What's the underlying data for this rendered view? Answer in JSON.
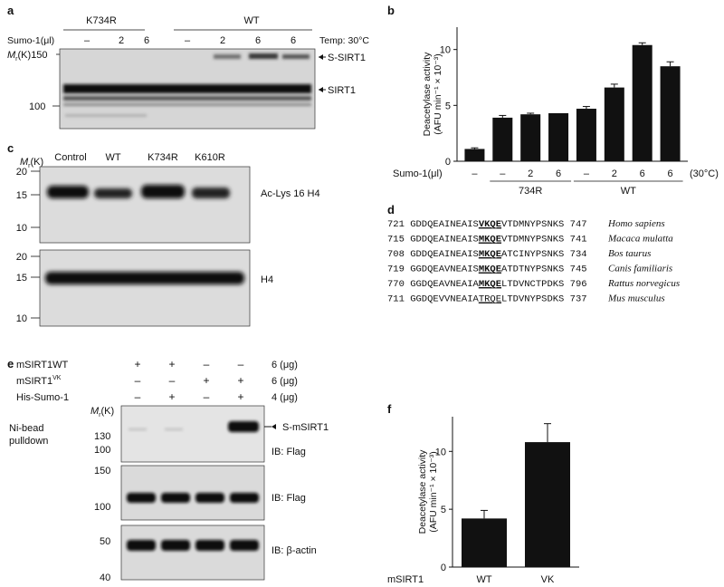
{
  "panel_a": {
    "label": "a",
    "group_left": "K734R",
    "group_right": "WT",
    "sumo_label": "Sumo-1(μl)",
    "lanes": [
      "–",
      "2",
      "6",
      "–",
      "2",
      "6",
      "6"
    ],
    "temp": "Temp: 30°C",
    "mr_label": "M",
    "mr_sub": "r",
    "mr_unit": "(K)",
    "marker_150": "150",
    "marker_100": "100",
    "band_upper": "S-SIRT1",
    "band_lower": "SIRT1"
  },
  "panel_b": {
    "label": "b",
    "chart_data": {
      "type": "bar",
      "ylabel": "Deacetylase activity",
      "ylabel_unit": "(AFU min⁻¹ × 10⁻³)",
      "yticks": [
        0,
        5,
        10
      ],
      "ylim": [
        0,
        12
      ],
      "row_label": "Sumo-1(μl)",
      "categories": [
        "–",
        "–",
        "2",
        "6",
        "–",
        "2",
        "6",
        "6"
      ],
      "values": [
        1.1,
        3.9,
        4.2,
        4.3,
        4.7,
        6.6,
        10.4,
        8.5
      ],
      "errors": [
        0.1,
        0.2,
        0.1,
        0.0,
        0.2,
        0.3,
        0.2,
        0.4
      ],
      "group_734R": "734R",
      "group_WT": "WT",
      "temp": "(30°C)"
    }
  },
  "panel_c": {
    "label": "c",
    "mr_label": "M",
    "mr_sub": "r",
    "mr_unit": "(K)",
    "lanes": [
      "Control",
      "WT",
      "K734R",
      "K610R"
    ],
    "top_markers": [
      "20",
      "15",
      "10"
    ],
    "bottom_markers": [
      "20",
      "15",
      "10"
    ],
    "blot_top": "Ac-Lys 16 H4",
    "blot_bottom": "H4"
  },
  "panel_d": {
    "label": "d",
    "rows": [
      {
        "start": "721",
        "pre": "GDDQEAINEAIS",
        "motif": "VKQE",
        "post": "VTDMNYPSNKS",
        "end": "747",
        "species": "Homo sapiens"
      },
      {
        "start": "715",
        "pre": "GDDQEAINEAIS",
        "motif": "MKQE",
        "post": "VTDMNYPSNKS",
        "end": "741",
        "species": "Macaca mulatta"
      },
      {
        "start": "708",
        "pre": "GDDQEAINEAIS",
        "motif": "MKQE",
        "post": "ATCINYPSNKS",
        "end": "734",
        "species": "Bos taurus"
      },
      {
        "start": "719",
        "pre": "GGDQEAVNEAIS",
        "motif": "MKQE",
        "post": "ATDTNYPSNKS",
        "end": "745",
        "species": "Canis familiaris"
      },
      {
        "start": "770",
        "pre": "GGDQEAVNEAIA",
        "motif": "MKQE",
        "post": "LTDVNCTPDKS",
        "end": "796",
        "species": "Rattus norvegicus"
      },
      {
        "start": "711",
        "pre": "GGDQEVVNEAIA",
        "motif": "TRQE",
        "post": "LTDVNYPSDKS",
        "end": "737",
        "species": "Mus musculus"
      }
    ]
  },
  "panel_e": {
    "label": "e",
    "rows": [
      {
        "name": "mSIRT1WT",
        "sup": "",
        "signs": [
          "+",
          "+",
          "–",
          "–"
        ],
        "amount": "6 (μg)"
      },
      {
        "name": "mSIRT1",
        "sup": "VK",
        "signs": [
          "–",
          "–",
          "+",
          "+"
        ],
        "amount": "6 (μg)"
      },
      {
        "name": "His-Sumo-1",
        "sup": "",
        "signs": [
          "–",
          "+",
          "–",
          "+"
        ],
        "amount": "4 (μg)"
      }
    ],
    "mr_label": "M",
    "mr_sub": "r",
    "mr_unit": "(K)",
    "pulldown_label_1": "Ni-bead",
    "pulldown_label_2": "pulldown",
    "blot1_markers": [
      "130",
      "100"
    ],
    "blot1_band": "S-mSIRT1",
    "blot1_ib": "IB: Flag",
    "blot2_markers": [
      "150",
      "100"
    ],
    "blot2_ib": "IB: Flag",
    "blot3_markers": [
      "50",
      "40"
    ],
    "blot3_ib": "IB: β-actin"
  },
  "panel_f": {
    "label": "f",
    "chart_data": {
      "type": "bar",
      "ylabel": "Deacetylase activity",
      "ylabel_unit": "(AFU min⁻¹ × 10⁻³)",
      "yticks": [
        0,
        5,
        10
      ],
      "ylim": [
        0,
        13
      ],
      "row_label": "mSIRT1",
      "categories": [
        "WT",
        "VK"
      ],
      "values": [
        4.2,
        10.8
      ],
      "errors": [
        0.7,
        1.6
      ]
    }
  }
}
